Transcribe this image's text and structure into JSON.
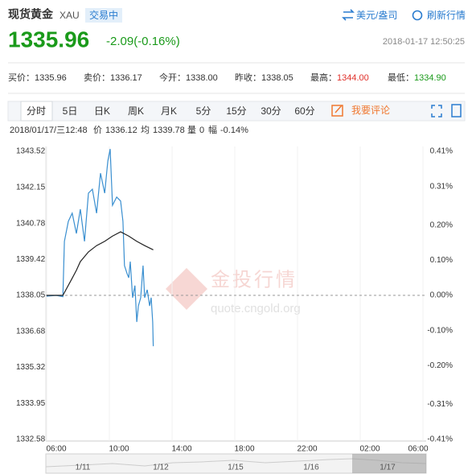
{
  "header": {
    "name": "现货黄金",
    "code": "XAU",
    "status": "交易中",
    "unit": "美元/盎司",
    "refresh": "刷新行情"
  },
  "quote": {
    "price": "1335.96",
    "change": "-2.09(-0.16%)",
    "time": "2018-01-17 12:50:25"
  },
  "stats": [
    {
      "label": "买价：",
      "value": "1335.96"
    },
    {
      "label": "卖价：",
      "value": "1336.17"
    },
    {
      "label": "今开：",
      "value": "1338.00"
    },
    {
      "label": "昨收：",
      "value": "1338.05"
    },
    {
      "label": "最高：",
      "value": "1344.00"
    },
    {
      "label": "最低：",
      "value": "1334.90"
    }
  ],
  "tabs": [
    "分时",
    "5日",
    "日K",
    "周K",
    "月K",
    "5分",
    "15分",
    "30分",
    "60分"
  ],
  "comment": "我要评论",
  "info": {
    "date": "2018/01/17/三12:48",
    "items": [
      {
        "label": "价",
        "value": "1336.12"
      },
      {
        "label": "均",
        "value": "1339.78"
      },
      {
        "label": "量",
        "value": "0"
      },
      {
        "label": "幅",
        "value": "-0.14%"
      }
    ]
  },
  "watermark": {
    "brand": "金投行情",
    "url": "quote.cngold.org"
  },
  "chart_data": {
    "type": "line",
    "ylim": [
      1332.58,
      1343.52
    ],
    "yticks": [
      1343.52,
      1342.15,
      1340.78,
      1339.42,
      1338.05,
      1336.68,
      1335.32,
      1333.95,
      1332.58
    ],
    "y2lim": [
      -0.41,
      0.41
    ],
    "y2ticks": [
      {
        "value": 0.41,
        "label": "0.41%"
      },
      {
        "value": 0.31,
        "label": "0.31%"
      },
      {
        "value": 0.2,
        "label": "0.20%"
      },
      {
        "value": 0.1,
        "label": "0.10%"
      },
      {
        "value": 0,
        "label": "0.00%"
      },
      {
        "value": -0.1,
        "label": "-0.10%"
      },
      {
        "value": -0.2,
        "label": "-0.20%"
      },
      {
        "value": -0.31,
        "label": "-0.31%"
      },
      {
        "value": -0.41,
        "label": "-0.41%"
      }
    ],
    "baseline": 1338.05,
    "xticks": [
      "06:00",
      "10:00",
      "14:00",
      "18:00",
      "22:00",
      "02:00",
      "06:00"
    ],
    "up_color": "#e0302a",
    "down_color": "#1a9a1a",
    "series": [
      {
        "color": "#3a8fd0",
        "x": [
          "06:00",
          "06:37",
          "07:02",
          "07:08",
          "07:23",
          "07:38",
          "07:54",
          "08:09",
          "08:25",
          "08:40",
          "08:55",
          "09:11",
          "09:26",
          "09:42",
          "09:54",
          "10:03",
          "10:12",
          "10:28",
          "10:43",
          "10:52",
          "10:58",
          "11:08",
          "11:14",
          "11:20",
          "11:29",
          "11:38",
          "11:45",
          "11:51",
          "12:00",
          "12:09",
          "12:15",
          "12:25",
          "12:34",
          "12:40",
          "12:46",
          "12:48"
        ],
        "values": [
          1338.02,
          1338.05,
          1338.0,
          1340.1,
          1340.86,
          1341.17,
          1340.4,
          1341.32,
          1340.1,
          1341.93,
          1342.08,
          1341.17,
          1342.69,
          1341.93,
          1343.15,
          1343.61,
          1341.47,
          1341.78,
          1341.63,
          1340.86,
          1339.18,
          1338.87,
          1338.72,
          1339.33,
          1337.96,
          1338.42,
          1337.04,
          1337.65,
          1337.96,
          1339.18,
          1337.96,
          1338.26,
          1337.65,
          1337.96,
          1337.04,
          1336.12
        ]
      },
      {
        "color": "#222222",
        "x": [
          "06:00",
          "07:02",
          "07:38",
          "07:54",
          "08:09",
          "08:40",
          "09:11",
          "09:42",
          "10:12",
          "10:43",
          "11:14",
          "11:45",
          "12:15",
          "12:48"
        ],
        "values": [
          1338.05,
          1338.05,
          1338.7,
          1339.0,
          1339.33,
          1339.7,
          1339.94,
          1340.1,
          1340.3,
          1340.46,
          1340.3,
          1340.1,
          1339.94,
          1339.78
        ]
      }
    ]
  },
  "navigator": {
    "labels": [
      "1/11",
      "1/12",
      "1/15",
      "1/16",
      "1/17"
    ]
  }
}
